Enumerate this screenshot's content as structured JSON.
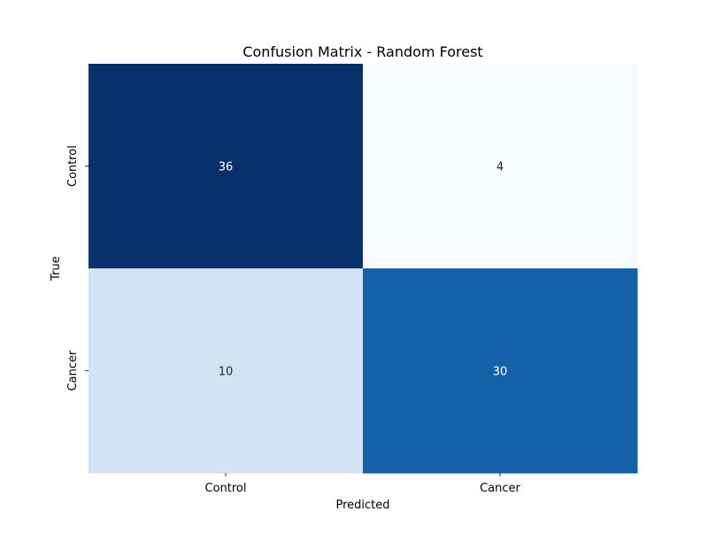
{
  "chart_data": {
    "type": "heatmap",
    "title": "Confusion Matrix - Random Forest",
    "xlabel": "Predicted",
    "ylabel": "True",
    "x_categories": [
      "Control",
      "Cancer"
    ],
    "y_categories": [
      "Control",
      "Cancer"
    ],
    "values": [
      [
        36,
        4
      ],
      [
        10,
        30
      ]
    ],
    "colormap": "Blues",
    "colorbar": false,
    "grid": false,
    "colors": {
      "text_light": "#ffffff",
      "text_dark": "#262626",
      "axis_text": "#000000"
    }
  }
}
